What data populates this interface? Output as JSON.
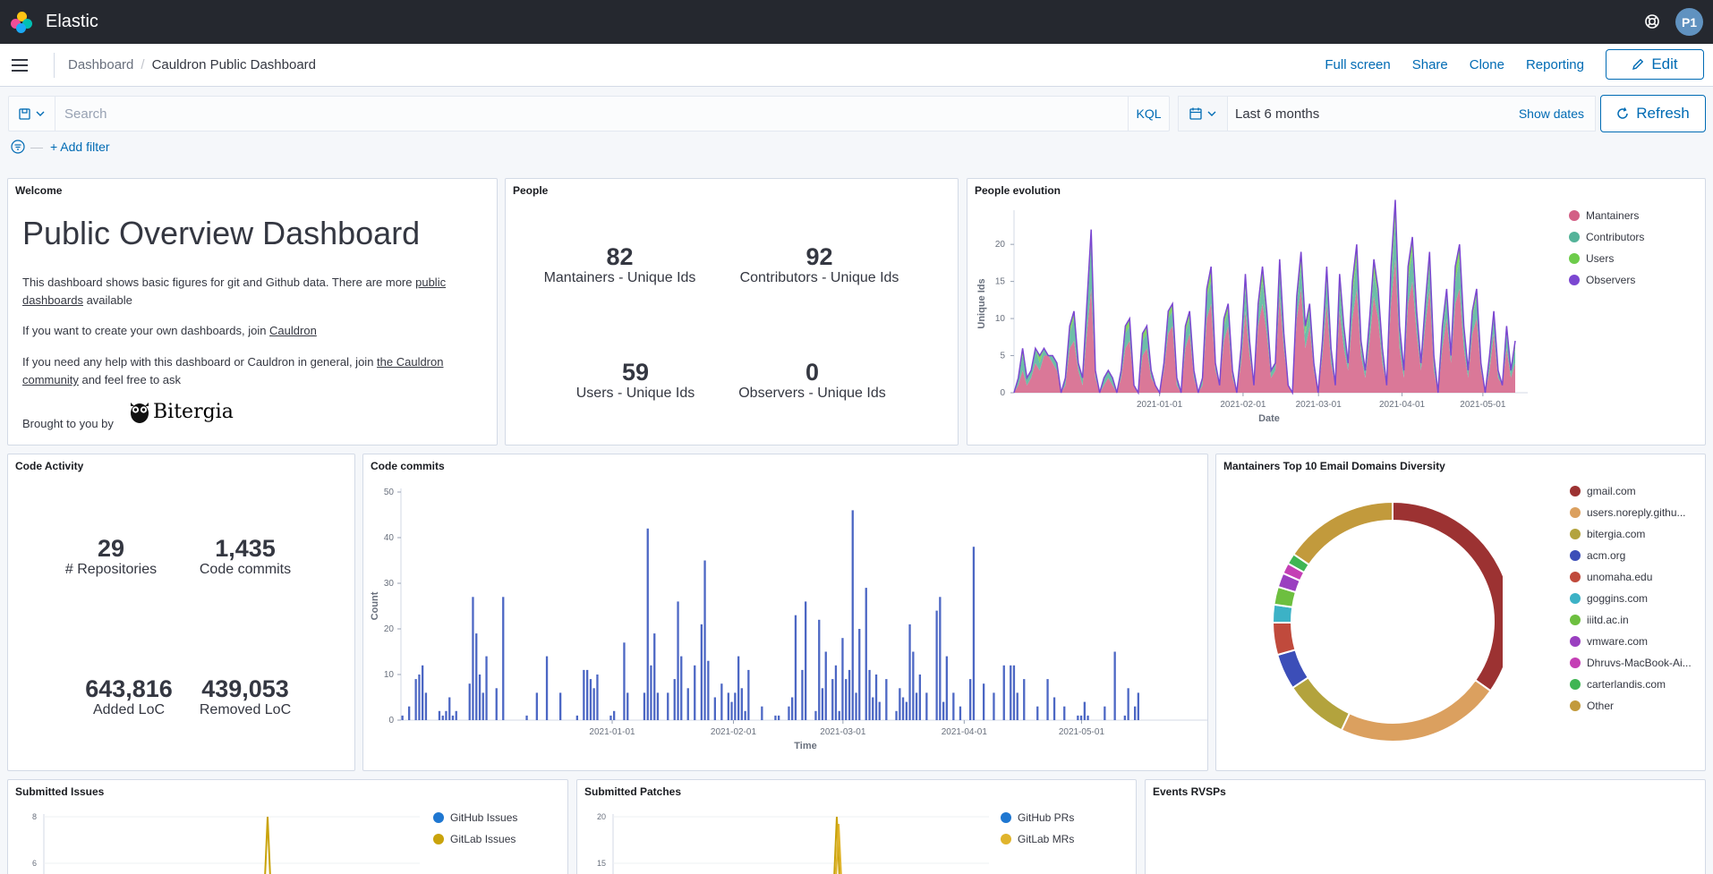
{
  "app": {
    "title": "Elastic",
    "avatar": "P1"
  },
  "breadcrumbs": {
    "parent": "Dashboard",
    "current": "Cauldron Public Dashboard"
  },
  "actions": {
    "full_screen": "Full screen",
    "share": "Share",
    "clone": "Clone",
    "reporting": "Reporting",
    "edit": "Edit"
  },
  "query": {
    "placeholder": "Search",
    "language": "KQL",
    "add_filter": "+ Add filter"
  },
  "time": {
    "range": "Last 6 months",
    "show_dates": "Show dates",
    "refresh": "Refresh"
  },
  "welcome": {
    "title": "Welcome",
    "heading": "Public Overview Dashboard",
    "p1_before": "This dashboard shows basic figures for git and Github data. There are more ",
    "p1_link": "public dashboards",
    "p1_after": " available",
    "p2_before": "If you want to create your own dashboards, join ",
    "p2_link": "Cauldron",
    "p3_before": "If you need any help with this dashboard or Cauldron in general, join ",
    "p3_link": "the Cauldron community",
    "p3_after": " and feel free to ask",
    "brought": "Brought to you by",
    "brand": "Bitergia"
  },
  "people": {
    "title": "People",
    "metrics": [
      {
        "value": "82",
        "label": "Mantainers - Unique Ids"
      },
      {
        "value": "92",
        "label": "Contributors - Unique Ids"
      },
      {
        "value": "59",
        "label": "Users - Unique Ids"
      },
      {
        "value": "0",
        "label": "Observers - Unique Ids"
      }
    ]
  },
  "people_evolution": {
    "title": "People evolution",
    "legend": [
      {
        "name": "Mantainers",
        "color": "#d36086"
      },
      {
        "name": "Contributors",
        "color": "#54b399"
      },
      {
        "name": "Users",
        "color": "#6dcc4b"
      },
      {
        "name": "Observers",
        "color": "#7b47d1"
      }
    ]
  },
  "code_activity": {
    "title": "Code Activity",
    "metrics": [
      {
        "value": "29",
        "label": "# Repositories"
      },
      {
        "value": "1,435",
        "label": "Code commits"
      },
      {
        "value": "643,816",
        "label": "Added LoC"
      },
      {
        "value": "439,053",
        "label": "Removed LoC"
      }
    ]
  },
  "code_commits": {
    "title": "Code commits"
  },
  "domains": {
    "title": "Mantainers Top 10 Email Domains Diversity",
    "legend": [
      {
        "name": "gmail.com",
        "color": "#9c3232"
      },
      {
        "name": "users.noreply.githu...",
        "color": "#dba05f"
      },
      {
        "name": "bitergia.com",
        "color": "#b3a33d"
      },
      {
        "name": "acm.org",
        "color": "#3c4eb8"
      },
      {
        "name": "unomaha.edu",
        "color": "#c04a3c"
      },
      {
        "name": "goggins.com",
        "color": "#3cb2c6"
      },
      {
        "name": "iiitd.ac.in",
        "color": "#6dbf3f"
      },
      {
        "name": "vmware.com",
        "color": "#9a3fc0"
      },
      {
        "name": "Dhruvs-MacBook-Ai...",
        "color": "#c43fb5"
      },
      {
        "name": "carterlandis.com",
        "color": "#3fb553"
      },
      {
        "name": "Other",
        "color": "#c29a3c"
      }
    ]
  },
  "submitted_issues": {
    "title": "Submitted Issues",
    "legend": [
      {
        "name": "GitHub Issues",
        "color": "#1f77d1"
      },
      {
        "name": "GitLab Issues",
        "color": "#c9a30b"
      }
    ]
  },
  "submitted_patches": {
    "title": "Submitted Patches",
    "legend": [
      {
        "name": "GitHub PRs",
        "color": "#1f77d1"
      },
      {
        "name": "GitLab MRs",
        "color": "#e0b42c"
      }
    ]
  },
  "events": {
    "title": "Events RVSPs"
  },
  "chart_data": [
    {
      "type": "area",
      "title": "People evolution",
      "xlabel": "Date",
      "ylabel": "Unique Ids",
      "ylim": [
        0,
        24
      ],
      "yticks": [
        0,
        5,
        10,
        15,
        20
      ],
      "xticks": [
        "2021-01-01",
        "2021-02-01",
        "2021-03-01",
        "2021-04-01",
        "2021-05-01"
      ],
      "x_start": "2020-11-08",
      "x_end": "2021-05-13",
      "series": [
        {
          "name": "Mantainers",
          "values": [
            0,
            1,
            3,
            1,
            2,
            4,
            3,
            5,
            5,
            4,
            3,
            0,
            1,
            6,
            7,
            3,
            1,
            8,
            14,
            2,
            0,
            1,
            2,
            1,
            0,
            2,
            6,
            7,
            1,
            0,
            5,
            6,
            2,
            1,
            0,
            3,
            8,
            9,
            1,
            0,
            6,
            8,
            2,
            0,
            1,
            10,
            12,
            3,
            1,
            7,
            9,
            2,
            0,
            4,
            11,
            5,
            1,
            9,
            12,
            8,
            2,
            3,
            13,
            6,
            1,
            0,
            10,
            14,
            6,
            9,
            3,
            0,
            5,
            12,
            4,
            1,
            11,
            6,
            3,
            10,
            14,
            5,
            2,
            7,
            13,
            10,
            4,
            1,
            12,
            18,
            6,
            2,
            12,
            15,
            8,
            3,
            9,
            14,
            3,
            0,
            6,
            10,
            4,
            12,
            14,
            6,
            2,
            8,
            10,
            3,
            0,
            3,
            8,
            2,
            1,
            6,
            2,
            4
          ]
        },
        {
          "name": "Contributors",
          "values": [
            0,
            1,
            2,
            1,
            1,
            2,
            1,
            1,
            0,
            1,
            1,
            0,
            1,
            2,
            3,
            1,
            1,
            3,
            6,
            1,
            0,
            1,
            1,
            1,
            0,
            1,
            2,
            2,
            0,
            0,
            2,
            2,
            1,
            0,
            0,
            1,
            2,
            2,
            1,
            0,
            2,
            2,
            1,
            0,
            1,
            3,
            3,
            1,
            0,
            2,
            2,
            1,
            0,
            1,
            3,
            1,
            0,
            2,
            3,
            2,
            1,
            1,
            3,
            1,
            0,
            0,
            2,
            3,
            2,
            2,
            1,
            0,
            1,
            3,
            1,
            0,
            3,
            2,
            1,
            3,
            4,
            1,
            1,
            2,
            3,
            3,
            1,
            0,
            3,
            5,
            2,
            1,
            3,
            4,
            2,
            1,
            2,
            3,
            1,
            0,
            2,
            3,
            1,
            3,
            4,
            2,
            1,
            2,
            3,
            1,
            0,
            1,
            2,
            1,
            0,
            2,
            1,
            2
          ]
        },
        {
          "name": "Users",
          "values": [
            0,
            0,
            1,
            0,
            0,
            0,
            1,
            0,
            0,
            0,
            0,
            0,
            0,
            1,
            1,
            0,
            0,
            1,
            1,
            0,
            0,
            0,
            0,
            0,
            0,
            0,
            1,
            1,
            0,
            0,
            1,
            1,
            0,
            0,
            0,
            0,
            1,
            1,
            0,
            0,
            1,
            1,
            0,
            0,
            0,
            1,
            2,
            0,
            0,
            1,
            1,
            0,
            0,
            1,
            2,
            1,
            0,
            1,
            2,
            1,
            0,
            0,
            2,
            1,
            0,
            0,
            1,
            2,
            1,
            1,
            0,
            0,
            1,
            2,
            1,
            0,
            2,
            1,
            0,
            2,
            2,
            1,
            0,
            1,
            2,
            1,
            1,
            0,
            2,
            3,
            1,
            0,
            2,
            2,
            1,
            0,
            1,
            2,
            1,
            0,
            1,
            1,
            0,
            2,
            2,
            1,
            0,
            1,
            1,
            0,
            0,
            1,
            1,
            0,
            0,
            1,
            0,
            1
          ]
        },
        {
          "name": "Observers",
          "values": [
            0,
            0,
            0,
            0,
            0,
            0,
            0,
            0,
            0,
            0,
            0,
            0,
            0,
            0,
            0,
            0,
            0,
            0,
            1,
            0,
            0,
            0,
            0,
            0,
            0,
            0,
            0,
            0,
            0,
            0,
            0,
            0,
            0,
            0,
            0,
            0,
            0,
            0,
            0,
            0,
            0,
            0,
            0,
            0,
            0,
            0,
            0,
            0,
            0,
            0,
            0,
            0,
            0,
            0,
            0,
            0,
            0,
            0,
            0,
            0,
            0,
            0,
            0,
            0,
            0,
            0,
            0,
            0,
            0,
            0,
            0,
            0,
            0,
            0,
            0,
            0,
            0,
            0,
            0,
            0,
            0,
            0,
            0,
            0,
            0,
            0,
            0,
            0,
            0,
            0,
            0,
            0,
            0,
            0,
            0,
            0,
            0,
            0,
            0,
            0,
            0,
            0,
            0,
            0,
            0,
            0,
            0,
            0,
            0,
            0,
            0,
            0,
            0,
            0,
            0,
            0,
            0,
            0
          ]
        }
      ]
    },
    {
      "type": "bar",
      "title": "Code commits",
      "xlabel": "Time",
      "ylabel": "Count",
      "ylim": [
        0,
        50
      ],
      "yticks": [
        0,
        10,
        20,
        30,
        40,
        50
      ],
      "xticks": [
        "2021-01-01",
        "2021-02-01",
        "2021-03-01",
        "2021-04-01",
        "2021-05-01"
      ],
      "x_start": "2020-11-08",
      "x_end": "2021-05-16",
      "color": "#4c67c4",
      "values": [
        1,
        0,
        3,
        0,
        9,
        10,
        12,
        6,
        0,
        0,
        0,
        2,
        1,
        2,
        5,
        1,
        2,
        0,
        0,
        0,
        8,
        27,
        19,
        10,
        6,
        14,
        0,
        0,
        7,
        0,
        27,
        0,
        0,
        0,
        0,
        0,
        0,
        1,
        0,
        0,
        6,
        0,
        0,
        14,
        0,
        0,
        0,
        6,
        0,
        0,
        0,
        0,
        1,
        0,
        11,
        11,
        9,
        7,
        10,
        0,
        0,
        0,
        1,
        2,
        0,
        0,
        17,
        6,
        0,
        0,
        0,
        0,
        6,
        42,
        12,
        19,
        6,
        0,
        0,
        6,
        0,
        9,
        26,
        14,
        0,
        7,
        0,
        12,
        0,
        21,
        35,
        13,
        0,
        5,
        0,
        8,
        0,
        6,
        4,
        6,
        14,
        7,
        2,
        11,
        0,
        0,
        0,
        3,
        0,
        0,
        0,
        1,
        1,
        0,
        0,
        3,
        5,
        23,
        0,
        11,
        26,
        0,
        0,
        2,
        22,
        7,
        15,
        0,
        9,
        12,
        2,
        18,
        9,
        11,
        46,
        6,
        20,
        0,
        29,
        11,
        5,
        10,
        4,
        0,
        9,
        0,
        0,
        2,
        7,
        5,
        4,
        21,
        15,
        6,
        10,
        0,
        6,
        0,
        0,
        24,
        27,
        4,
        14,
        0,
        6,
        0,
        3,
        0,
        0,
        9,
        38,
        0,
        0,
        8,
        0,
        0,
        6,
        0,
        0,
        12,
        0,
        12,
        12,
        6,
        0,
        9,
        0,
        0,
        0,
        3,
        0,
        0,
        9,
        0,
        5,
        0,
        0,
        3,
        0,
        0,
        0,
        1,
        1,
        4,
        1,
        0,
        0,
        0,
        0,
        3,
        0,
        0,
        15,
        0,
        0,
        1,
        7,
        0,
        3,
        6
      ]
    },
    {
      "type": "pie",
      "title": "Mantainers Top 10 Email Domains Diversity",
      "categories": [
        "gmail.com",
        "users.noreply.githu...",
        "bitergia.com",
        "acm.org",
        "unomaha.edu",
        "goggins.com",
        "iiitd.ac.in",
        "vmware.com",
        "Dhruvs-MacBook-Ai...",
        "carterlandis.com",
        "Other"
      ],
      "values": [
        36,
        23,
        9,
        5,
        4.5,
        2.5,
        2.5,
        2,
        1.5,
        1.5,
        16
      ]
    },
    {
      "type": "line",
      "title": "Submitted Issues",
      "ylim": [
        0,
        8
      ],
      "yticks": [
        6,
        8
      ],
      "series": [
        {
          "name": "GitHub Issues"
        },
        {
          "name": "GitLab Issues"
        }
      ]
    },
    {
      "type": "line",
      "title": "Submitted Patches",
      "ylim": [
        0,
        20
      ],
      "yticks": [
        15,
        20
      ],
      "series": [
        {
          "name": "GitHub PRs"
        },
        {
          "name": "GitLab MRs"
        }
      ]
    }
  ]
}
